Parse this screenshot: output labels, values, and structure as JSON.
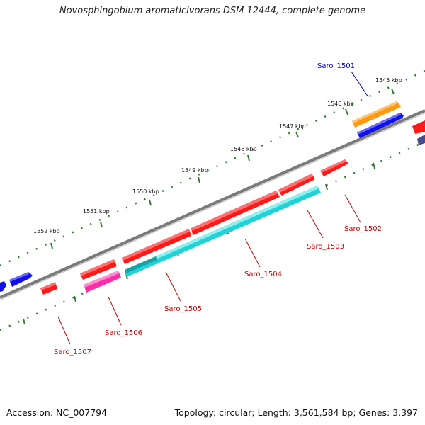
{
  "title": "Novosphingobium aromaticivorans DSM 12444, complete genome",
  "footer": {
    "accession": "Accession: NC_007794",
    "stats": "Topology: circular; Length: 3,561,584 bp; Genes: 3,397"
  },
  "ticks": [
    "1545 kbp",
    "1546 kbp",
    "1547 kbp",
    "1548 kbp",
    "1549 kbp",
    "1550 kbp",
    "1551 kbp",
    "1552 kbp"
  ],
  "genes": [
    {
      "name": "Saro_1501",
      "color": "#0000cc"
    },
    {
      "name": "Saro_1502",
      "color": "#cc0000"
    },
    {
      "name": "Saro_1503",
      "color": "#cc0000"
    },
    {
      "name": "Saro_1504",
      "color": "#cc0000"
    },
    {
      "name": "Saro_1505",
      "color": "#cc0000"
    },
    {
      "name": "Saro_1506",
      "color": "#cc0000"
    },
    {
      "name": "Saro_1507",
      "color": "#cc0000"
    }
  ],
  "colors": {
    "backbone": "#808080",
    "tick_dots": "#2e7d32",
    "gene_red": "#ff1a1a",
    "gene_blue": "#1010ee",
    "gene_cyan": "#22d3d6",
    "gene_orange": "#ff9a10",
    "gene_pink": "#ff2ea6",
    "gene_navy": "#4a4a8f"
  }
}
